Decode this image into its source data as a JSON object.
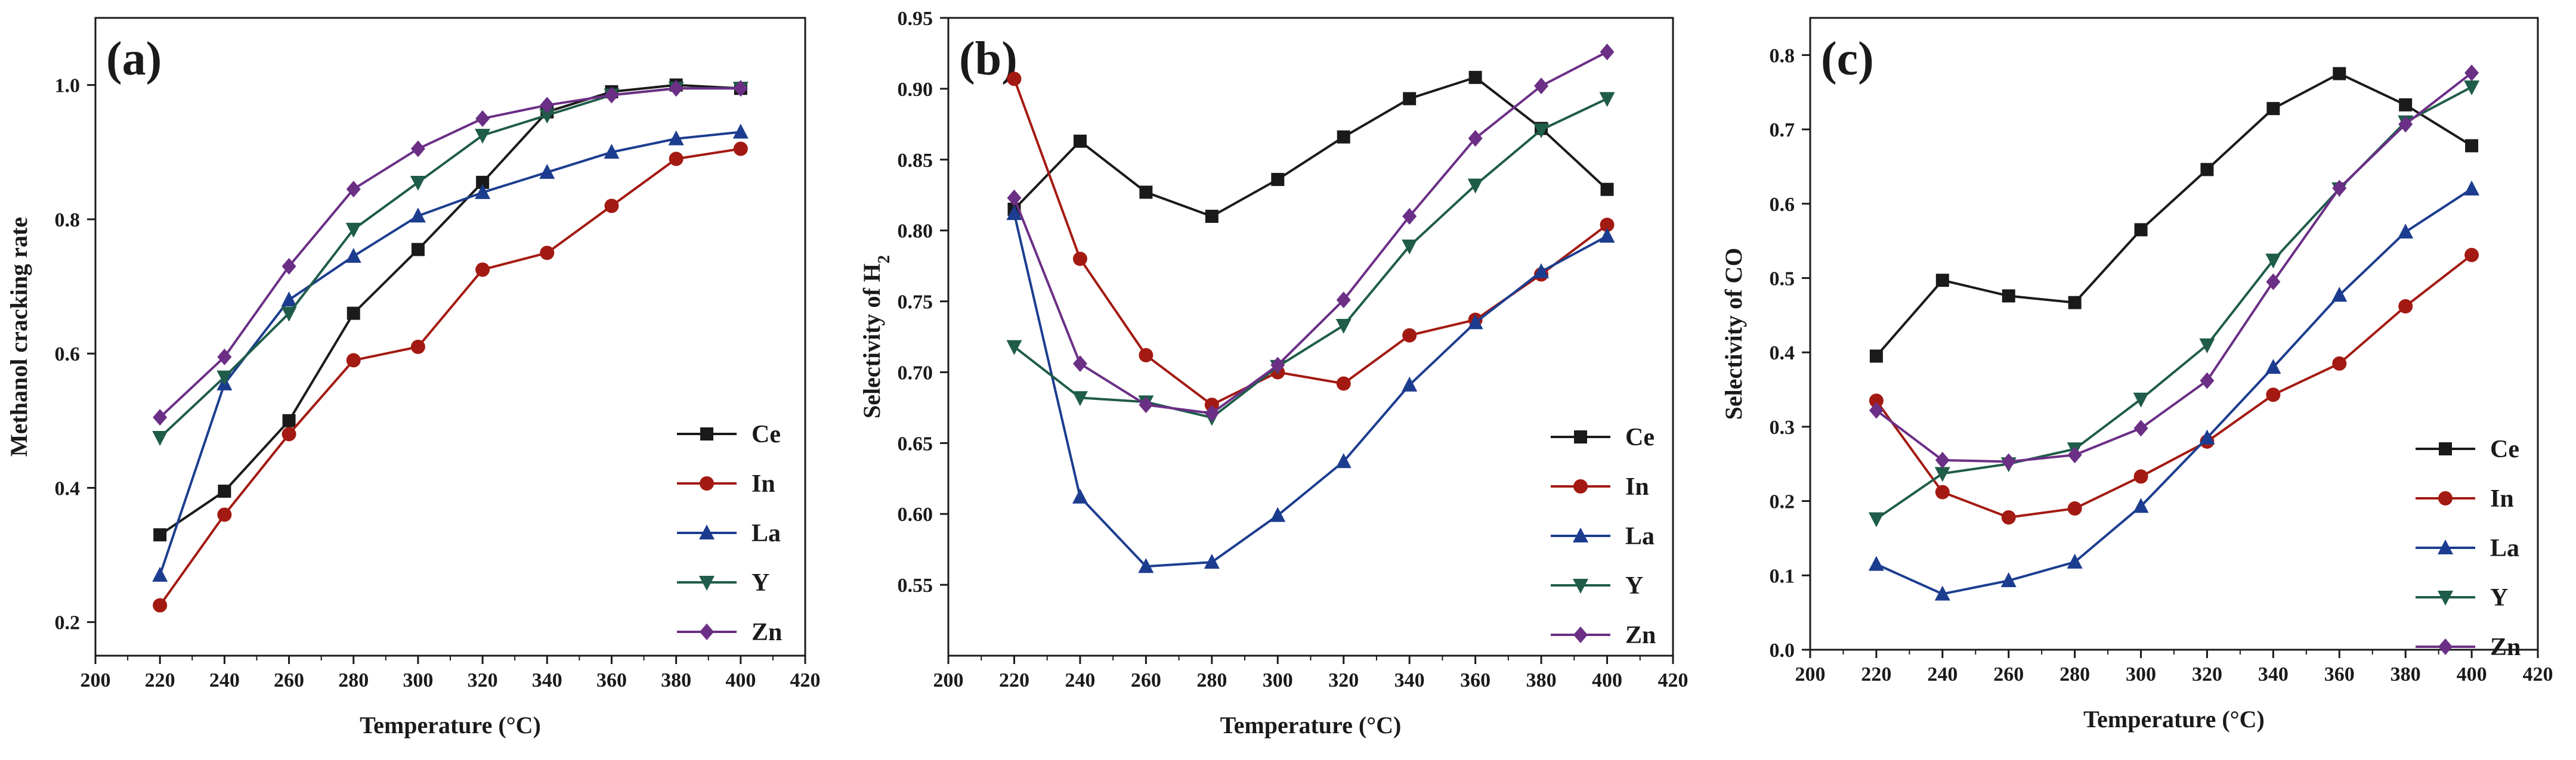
{
  "chart_data": [
    {
      "type": "line",
      "panel_label": "(a)",
      "xlabel": "Temperature (°C)",
      "ylabel": "Methanol cracking rate",
      "xlim": [
        200,
        420
      ],
      "ylim": [
        0.15,
        1.1
      ],
      "xticks": [
        200,
        220,
        240,
        260,
        280,
        300,
        320,
        340,
        360,
        380,
        400,
        420
      ],
      "yticks": [
        0.2,
        0.4,
        0.6,
        0.8,
        1.0
      ],
      "ytick_labels": [
        "0.2",
        "0.4",
        "0.6",
        "0.8",
        "1.0"
      ],
      "legend_position": "bottom-right",
      "x": [
        220,
        240,
        260,
        280,
        300,
        320,
        340,
        360,
        380,
        400
      ],
      "series": [
        {
          "name": "Ce",
          "color": "#1a1a1a",
          "marker": "square",
          "values": [
            0.33,
            0.395,
            0.5,
            0.66,
            0.755,
            0.855,
            0.96,
            0.99,
            1.0,
            0.995
          ]
        },
        {
          "name": "In",
          "color": "#a31a12",
          "marker": "circle",
          "values": [
            0.225,
            0.36,
            0.48,
            0.59,
            0.61,
            0.725,
            0.75,
            0.82,
            0.89,
            0.905
          ]
        },
        {
          "name": "La",
          "color": "#1c3d8f",
          "marker": "triangle-up",
          "values": [
            0.27,
            0.555,
            0.68,
            0.745,
            0.805,
            0.84,
            0.87,
            0.9,
            0.92,
            0.93
          ]
        },
        {
          "name": "Y",
          "color": "#1f5c4a",
          "marker": "triangle-down",
          "values": [
            0.475,
            0.565,
            0.66,
            0.785,
            0.855,
            0.925,
            0.955,
            0.985,
            0.995,
            0.995
          ]
        },
        {
          "name": "Zn",
          "color": "#6b2f86",
          "marker": "diamond",
          "values": [
            0.505,
            0.595,
            0.73,
            0.845,
            0.905,
            0.95,
            0.97,
            0.985,
            0.995,
            0.995
          ]
        }
      ]
    },
    {
      "type": "line",
      "panel_label": "(b)",
      "xlabel": "Temperature (°C)",
      "ylabel": "Selectivity of H",
      "ylabel_subscript": "2",
      "xlim": [
        200,
        420
      ],
      "ylim": [
        0.5,
        0.95
      ],
      "xticks": [
        200,
        220,
        240,
        260,
        280,
        300,
        320,
        340,
        360,
        380,
        400,
        420
      ],
      "yticks": [
        0.55,
        0.6,
        0.65,
        0.7,
        0.75,
        0.8,
        0.85,
        0.9,
        0.95
      ],
      "ytick_labels": [
        "0.55",
        "0.60",
        "0.65",
        "0.70",
        "0.75",
        "0.80",
        "0.85",
        "0.90",
        "0.95"
      ],
      "legend_position": "bottom-right",
      "x": [
        220,
        240,
        260,
        280,
        300,
        320,
        340,
        360,
        380,
        400
      ],
      "series": [
        {
          "name": "Ce",
          "color": "#1a1a1a",
          "marker": "square",
          "values": [
            0.815,
            0.863,
            0.827,
            0.81,
            0.836,
            0.866,
            0.893,
            0.908,
            0.872,
            0.829
          ]
        },
        {
          "name": "In",
          "color": "#a31a12",
          "marker": "circle",
          "values": [
            0.907,
            0.78,
            0.712,
            0.677,
            0.7,
            0.692,
            0.726,
            0.737,
            0.769,
            0.804
          ]
        },
        {
          "name": "La",
          "color": "#1c3d8f",
          "marker": "triangle-up",
          "values": [
            0.812,
            0.612,
            0.563,
            0.566,
            0.599,
            0.637,
            0.691,
            0.735,
            0.771,
            0.796
          ]
        },
        {
          "name": "Y",
          "color": "#1f5c4a",
          "marker": "triangle-down",
          "values": [
            0.718,
            0.682,
            0.679,
            0.668,
            0.704,
            0.733,
            0.789,
            0.832,
            0.871,
            0.893
          ]
        },
        {
          "name": "Zn",
          "color": "#6b2f86",
          "marker": "diamond",
          "values": [
            0.823,
            0.706,
            0.677,
            0.671,
            0.705,
            0.751,
            0.81,
            0.865,
            0.902,
            0.926
          ]
        }
      ]
    },
    {
      "type": "line",
      "panel_label": "(c)",
      "xlabel": "Temperature (°C)",
      "ylabel": "Selectivity of CO",
      "xlim": [
        200,
        420
      ],
      "ylim": [
        0.0,
        0.85
      ],
      "xticks": [
        200,
        220,
        240,
        260,
        280,
        300,
        320,
        340,
        360,
        380,
        400,
        420
      ],
      "yticks": [
        0.0,
        0.1,
        0.2,
        0.3,
        0.4,
        0.5,
        0.6,
        0.7,
        0.8
      ],
      "ytick_labels": [
        "0.0",
        "0.1",
        "0.2",
        "0.3",
        "0.4",
        "0.5",
        "0.6",
        "0.7",
        "0.8"
      ],
      "legend_position": "bottom-right",
      "x": [
        220,
        240,
        260,
        280,
        300,
        320,
        340,
        360,
        380,
        400
      ],
      "series": [
        {
          "name": "Ce",
          "color": "#1a1a1a",
          "marker": "square",
          "values": [
            0.395,
            0.497,
            0.476,
            0.467,
            0.565,
            0.646,
            0.728,
            0.775,
            0.733,
            0.678
          ]
        },
        {
          "name": "In",
          "color": "#a31a12",
          "marker": "circle",
          "values": [
            0.335,
            0.212,
            0.178,
            0.19,
            0.233,
            0.28,
            0.343,
            0.385,
            0.462,
            0.531
          ]
        },
        {
          "name": "La",
          "color": "#1c3d8f",
          "marker": "triangle-up",
          "values": [
            0.115,
            0.075,
            0.093,
            0.118,
            0.193,
            0.285,
            0.38,
            0.477,
            0.562,
            0.62
          ]
        },
        {
          "name": "Y",
          "color": "#1f5c4a",
          "marker": "triangle-down",
          "values": [
            0.176,
            0.237,
            0.25,
            0.27,
            0.337,
            0.41,
            0.524,
            0.62,
            0.71,
            0.757
          ]
        },
        {
          "name": "Zn",
          "color": "#6b2f86",
          "marker": "diamond",
          "values": [
            0.322,
            0.255,
            0.253,
            0.262,
            0.298,
            0.362,
            0.495,
            0.621,
            0.707,
            0.776
          ]
        }
      ]
    }
  ]
}
